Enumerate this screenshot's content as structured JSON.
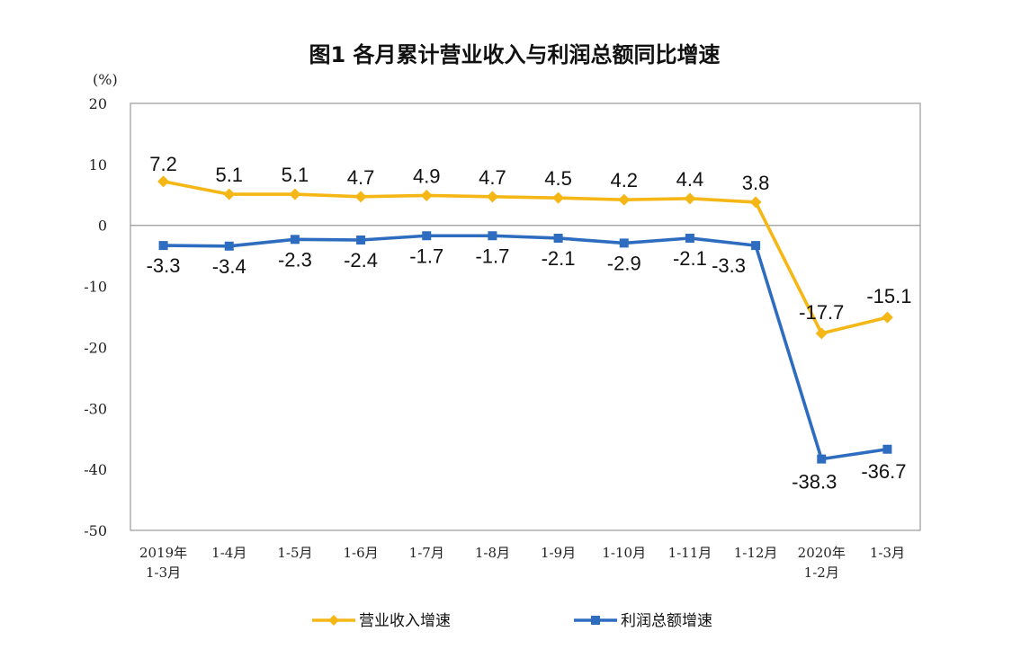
{
  "chart_data": {
    "type": "line",
    "title": "图1  各月累计营业收入与利润总额同比增速",
    "y_unit": "(%)",
    "ylim": [
      -50,
      20
    ],
    "yticks": [
      20,
      10,
      0,
      -10,
      -20,
      -30,
      -40,
      -50
    ],
    "grid": false,
    "legend_position": "bottom",
    "categories": [
      [
        "2019年",
        "1-3月"
      ],
      [
        "1-4月"
      ],
      [
        "1-5月"
      ],
      [
        "1-6月"
      ],
      [
        "1-7月"
      ],
      [
        "1-8月"
      ],
      [
        "1-9月"
      ],
      [
        "1-10月"
      ],
      [
        "1-11月"
      ],
      [
        "1-12月"
      ],
      [
        "2020年",
        "1-2月"
      ],
      [
        "1-3月"
      ]
    ],
    "series": [
      {
        "name": "营业收入增速",
        "color": "#F5B716",
        "marker": "diamond",
        "values": [
          7.2,
          5.1,
          5.1,
          4.7,
          4.9,
          4.7,
          4.5,
          4.2,
          4.4,
          3.8,
          -17.7,
          -15.1
        ],
        "labels": [
          "7.2",
          "5.1",
          "5.1",
          "4.7",
          "4.9",
          "4.7",
          "4.5",
          "4.2",
          "4.4",
          "3.8",
          "-17.7",
          "-15.1"
        ]
      },
      {
        "name": "利润总额增速",
        "color": "#2E6CC0",
        "marker": "square",
        "values": [
          -3.3,
          -3.4,
          -2.3,
          -2.4,
          -1.7,
          -1.7,
          -2.1,
          -2.9,
          -2.1,
          -3.3,
          -38.3,
          -36.7
        ],
        "labels": [
          "-3.3",
          "-3.4",
          "-2.3",
          "-2.4",
          "-1.7",
          "-1.7",
          "-2.1",
          "-2.9",
          "-2.1",
          "-3.3",
          "-38.3",
          "-36.7"
        ]
      }
    ]
  }
}
